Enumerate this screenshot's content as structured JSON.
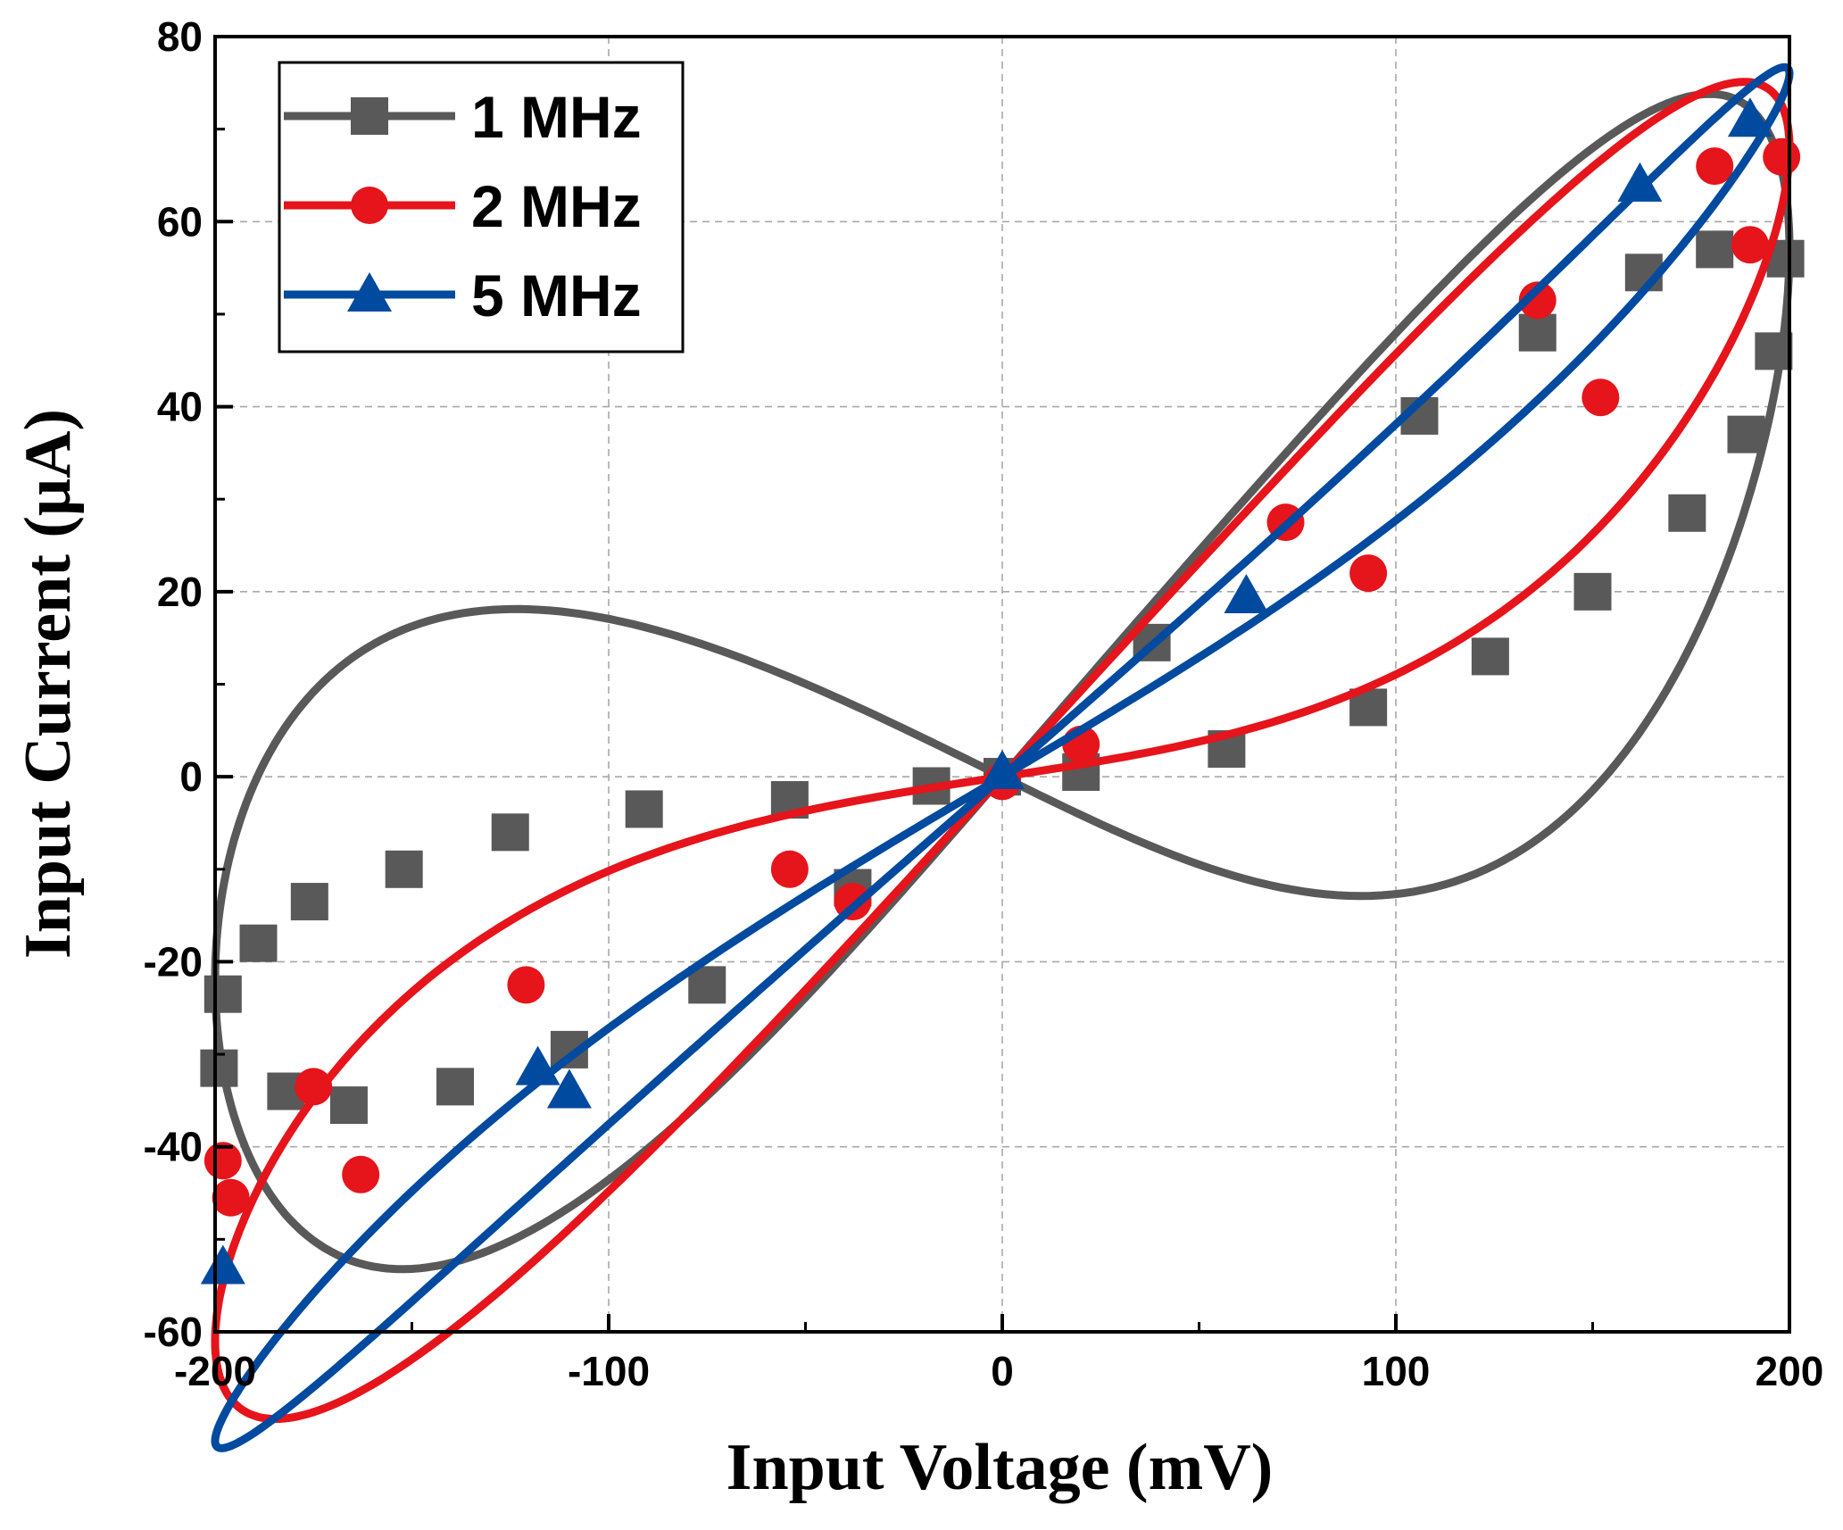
{
  "chart_data": {
    "type": "line",
    "title": "",
    "xlabel": "Input Voltage (mV)",
    "ylabel": "Input Current (μA)",
    "xlim": [
      -200,
      200
    ],
    "ylim": [
      -60,
      80
    ],
    "xticks": [
      -200,
      -100,
      0,
      100,
      200
    ],
    "yticks": [
      -60,
      -40,
      -20,
      0,
      20,
      40,
      60,
      80
    ],
    "grid": true,
    "legend_position": "top-left",
    "series": [
      {
        "name": "1 MHz",
        "color": "#595959",
        "marker": "square",
        "hysteresis": {
          "gmid": 0.14,
          "up": 35,
          "down": 35,
          "maxA": 57,
          "minA": -34,
          "vmax": 55,
          "vmin": -34
        },
        "marker_points": [
          [
            0,
            0
          ],
          [
            20,
            0.5
          ],
          [
            57,
            3
          ],
          [
            93,
            7.5
          ],
          [
            124,
            13
          ],
          [
            150,
            20
          ],
          [
            174,
            28.5
          ],
          [
            189,
            37
          ],
          [
            196,
            46
          ],
          [
            199,
            56
          ],
          [
            181,
            57
          ],
          [
            163,
            54.5
          ],
          [
            136,
            48
          ],
          [
            106,
            39
          ],
          [
            38,
            14.5
          ],
          [
            0,
            0
          ],
          [
            -18,
            -1
          ],
          [
            -54,
            -2.5
          ],
          [
            -91,
            -3.5
          ],
          [
            -125,
            -6
          ],
          [
            -152,
            -10
          ],
          [
            -176,
            -13.5
          ],
          [
            -189,
            -18
          ],
          [
            -198,
            -23.5
          ],
          [
            -199,
            -31.5
          ],
          [
            -182,
            -34
          ],
          [
            -166,
            -35.5
          ],
          [
            -139,
            -33.5
          ],
          [
            -110,
            -29.5
          ],
          [
            -75,
            -22.5
          ],
          [
            -38,
            -12
          ]
        ]
      },
      {
        "name": "2 MHz",
        "color": "#e6141b",
        "marker": "circle",
        "hysteresis": {
          "gmid": 0.265,
          "up": 20,
          "down": 20,
          "maxA": 68,
          "minA": -45,
          "vmax": 57,
          "vmin": -37
        },
        "marker_points": [
          [
            20,
            3.5
          ],
          [
            72,
            27.5
          ],
          [
            136,
            51.5
          ],
          [
            181,
            66
          ],
          [
            198,
            67
          ],
          [
            190,
            57.5
          ],
          [
            152,
            41
          ],
          [
            93,
            22
          ],
          [
            0,
            -0.5
          ],
          [
            -54,
            -10
          ],
          [
            -121,
            -22.5
          ],
          [
            -175,
            -33.5
          ],
          [
            -198,
            -41.5
          ],
          [
            -196,
            -45.5
          ],
          [
            -163,
            -43
          ],
          [
            -38,
            -13.5
          ]
        ]
      },
      {
        "name": "5 MHz",
        "color": "#004a9f",
        "marker": "triangle",
        "hysteresis": {
          "gmid": 0.312,
          "up": 6,
          "down": 6,
          "maxA": 76,
          "minA": -53,
          "vmax": 74,
          "vmin": -50
        },
        "marker_points": [
          [
            0,
            0.5
          ],
          [
            62,
            19.5
          ],
          [
            162,
            64
          ],
          [
            190,
            71
          ],
          [
            -118,
            -31.5
          ],
          [
            -110,
            -34
          ],
          [
            -198,
            -53
          ]
        ]
      }
    ]
  }
}
